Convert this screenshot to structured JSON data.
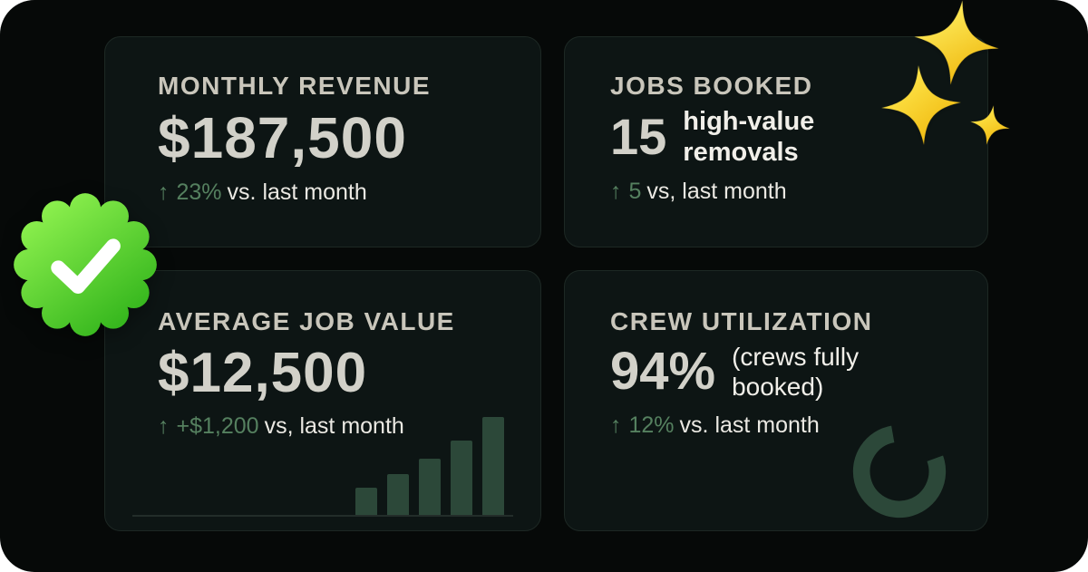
{
  "colors": {
    "canvas_bg": "#060908",
    "card_bg": "#0d1514",
    "title_text": "#c9c6bb",
    "value_text": "#d2d1c9",
    "body_text": "#ebe9e3",
    "accent_green": "#55805f",
    "chart_green": "#2c4839",
    "badge_green": "#4ec221",
    "sparkle_yellow": "#f6c812"
  },
  "icons": {
    "up_arrow": "↑",
    "badge": "verified-check-badge",
    "sparkles": "sparkles"
  },
  "cards": {
    "monthly_revenue": {
      "title": "MONTHLY REVENUE",
      "value": "$187,500",
      "delta": "23%",
      "delta_suffix": "vs. last month"
    },
    "jobs_booked": {
      "title": "JOBS BOOKED",
      "value": "15",
      "value_label": "high-value removals",
      "delta": "5",
      "delta_suffix": "vs, last month"
    },
    "average_job_value": {
      "title": "AVERAGE JOB VALUE",
      "value": "$12,500",
      "delta": "+$1,200",
      "delta_suffix": "vs, last month"
    },
    "crew_utilization": {
      "title": "CREW UTILIZATION",
      "value": "94%",
      "value_label": "(crews fully booked)",
      "delta": "12%",
      "delta_suffix": "vs. last month"
    }
  },
  "chart_data": [
    {
      "type": "bar",
      "card": "average_job_value",
      "values": [
        30,
        45,
        62,
        82,
        108
      ]
    },
    {
      "type": "pie",
      "card": "crew_utilization",
      "values": [
        94
      ]
    }
  ]
}
